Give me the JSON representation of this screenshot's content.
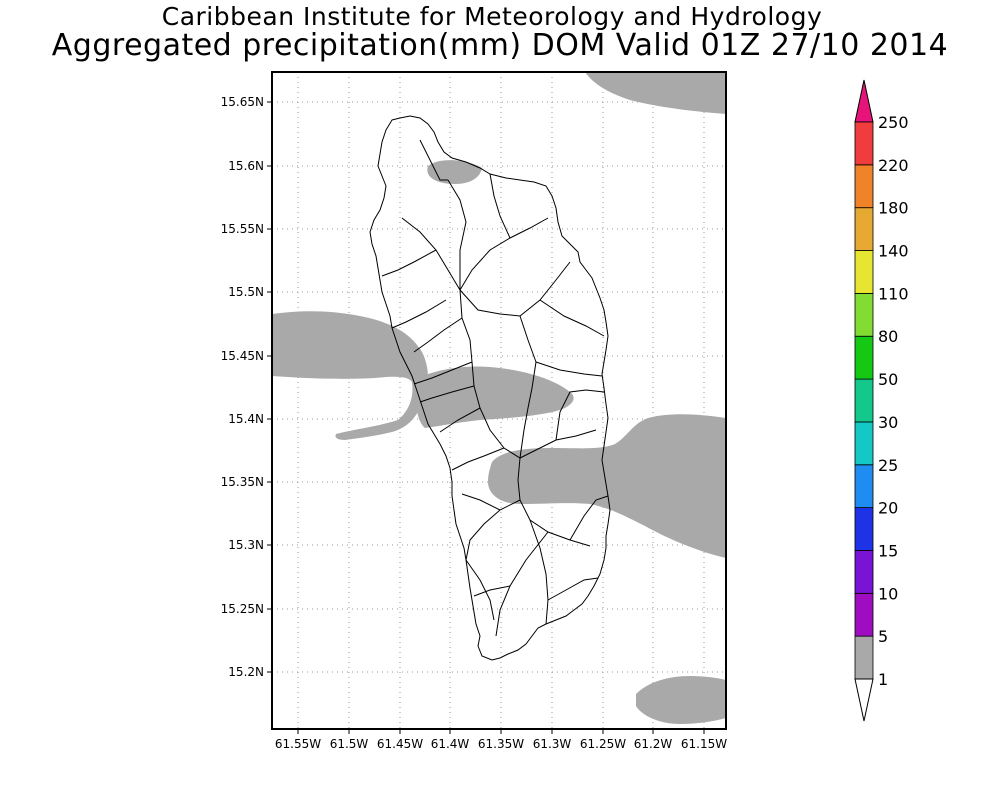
{
  "title": {
    "line1": "Caribbean Institute for Meteorology and Hydrology",
    "line2": "Aggregated precipitation(mm) DOM Valid 01Z 27/10 2014"
  },
  "map": {
    "x_ticks": [
      "61.55W",
      "61.5W",
      "61.45W",
      "61.4W",
      "61.35W",
      "61.3W",
      "61.25W",
      "61.2W",
      "61.15W"
    ],
    "y_ticks": [
      "15.65N",
      "15.6N",
      "15.55N",
      "15.5N",
      "15.45N",
      "15.4N",
      "15.35N",
      "15.3N",
      "15.25N",
      "15.2N"
    ],
    "precip_fill_color": "#a9a9a9",
    "land_border_color": "#000000",
    "grid": "dotted"
  },
  "colorbar": {
    "levels": [
      "1",
      "5",
      "10",
      "15",
      "20",
      "25",
      "30",
      "50",
      "80",
      "110",
      "140",
      "180",
      "220",
      "250"
    ],
    "colors": [
      "#a9a9a9",
      "#a00cc0",
      "#7a14d4",
      "#1e32e6",
      "#1e8cf0",
      "#14c8c8",
      "#14c88c",
      "#14c814",
      "#82dc32",
      "#e6e632",
      "#e6aa32",
      "#f08228",
      "#f03c3c",
      "#e6147a"
    ]
  }
}
